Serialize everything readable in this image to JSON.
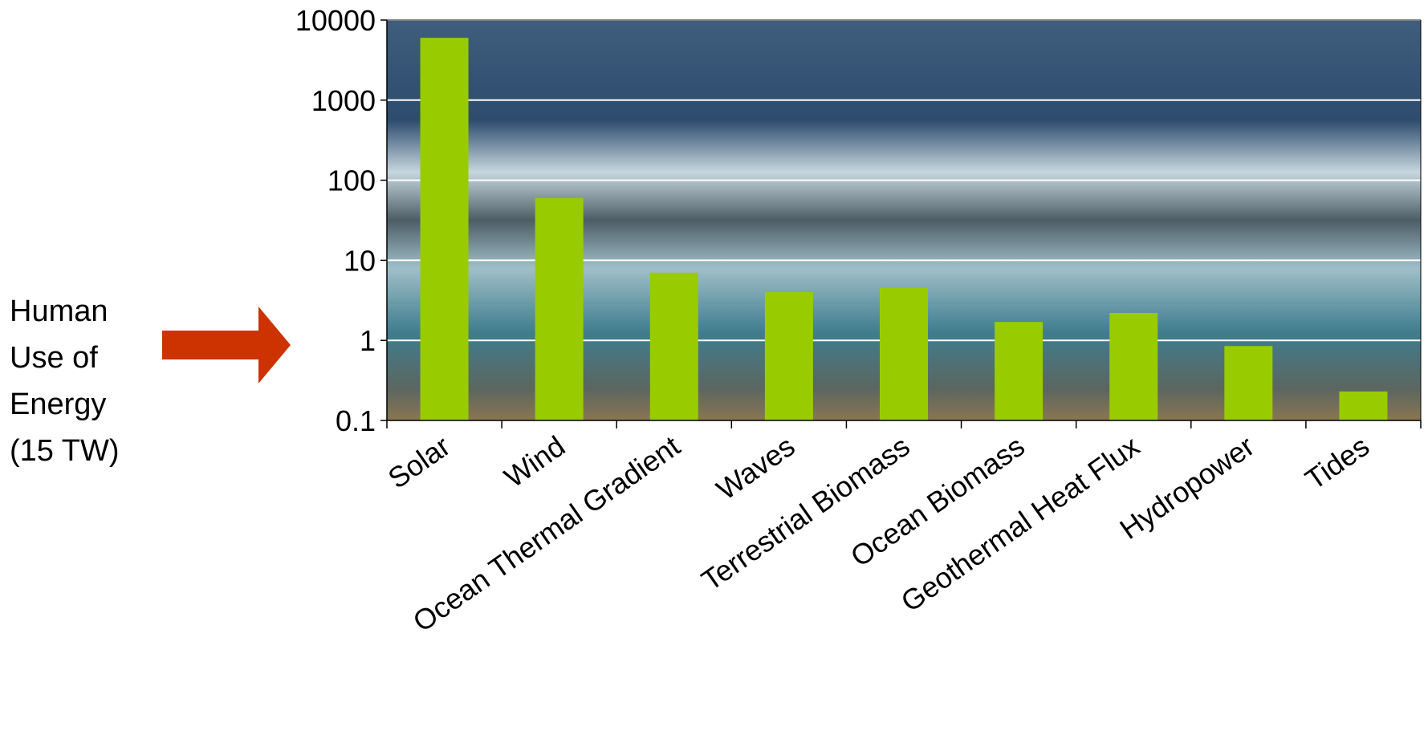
{
  "chart_data": {
    "type": "bar",
    "categories": [
      "Solar",
      "Wind",
      "Ocean Thermal Gradient",
      "Waves",
      "Terrestrial Biomass",
      "Ocean Biomass",
      "Geothermal Heat Flux",
      "Hydropower",
      "Tides"
    ],
    "values": [
      6000,
      60,
      7,
      4,
      4.5,
      1.7,
      2.2,
      0.85,
      0.23
    ],
    "color": "#99cc00",
    "log_scale": true,
    "ylim": [
      0.1,
      10000
    ],
    "yticks": [
      0.1,
      1,
      10,
      100,
      1000,
      10000
    ],
    "grid": true,
    "grid_color": "#ffffff",
    "annotation_lines": [
      "Human",
      "Use of",
      "Energy",
      "(15 TW)"
    ],
    "annotation_arrow_color": "#cc3300"
  }
}
